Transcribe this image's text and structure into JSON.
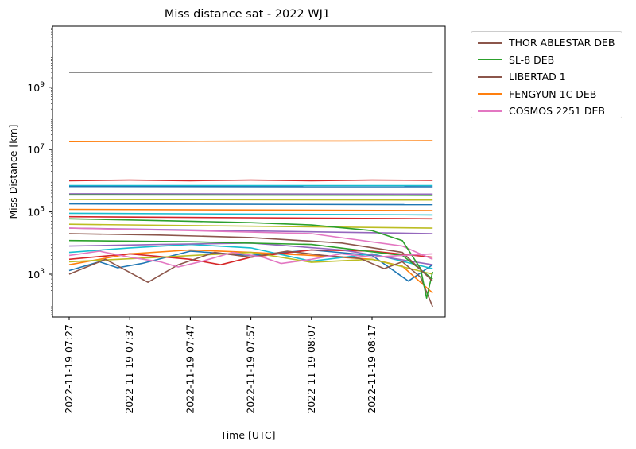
{
  "chart_data": {
    "type": "line",
    "title": "Miss distance sat - 2022 WJ1",
    "xlabel": "Time [UTC]",
    "ylabel": "Miss Distance [km]",
    "y_scale": "log",
    "ylim": [
      30,
      50000000000
    ],
    "x_ticks": [
      "2022-11-19 07:27",
      "2022-11-19 07:37",
      "2022-11-19 07:47",
      "2022-11-19 07:57",
      "2022-11-19 08:07",
      "2022-11-19 08:17"
    ],
    "y_tick_exponents": [
      3,
      5,
      7,
      9
    ],
    "y_tick_base": "10",
    "x_range_minutes_from_first_tick": [
      0,
      60
    ],
    "grid": false,
    "legend_position": "outside-upper-right",
    "series": [
      {
        "name": "THOR ABLESTAR DEB",
        "color": "#8c564b",
        "values": [
          [
            0,
            1000
          ],
          [
            6,
            3000
          ],
          [
            13,
            550
          ],
          [
            18,
            2000
          ],
          [
            24,
            5000
          ],
          [
            30,
            3500
          ],
          [
            36,
            5500
          ],
          [
            42,
            4000
          ],
          [
            48,
            3200
          ],
          [
            52,
            1500
          ],
          [
            55,
            2500
          ],
          [
            58,
            800
          ],
          [
            60,
            90
          ]
        ]
      },
      {
        "name": "SL-8 DEB",
        "color": "#2ca02c",
        "values": [
          [
            0,
            60000
          ],
          [
            10,
            55000
          ],
          [
            20,
            50000
          ],
          [
            30,
            45000
          ],
          [
            40,
            38000
          ],
          [
            50,
            25000
          ],
          [
            55,
            12000
          ],
          [
            58,
            1500
          ],
          [
            59,
            170
          ],
          [
            60,
            1200
          ]
        ]
      },
      {
        "name": "LIBERTAD 1",
        "color": "#8c564b",
        "values": [
          [
            0,
            20000
          ],
          [
            15,
            18000
          ],
          [
            30,
            15000
          ],
          [
            45,
            10000
          ],
          [
            55,
            5000
          ],
          [
            60,
            600
          ]
        ]
      },
      {
        "name": "FENGYUN 1C DEB",
        "color": "#ff7f0e",
        "values": [
          [
            0,
            18000000
          ],
          [
            15,
            18300000
          ],
          [
            30,
            18600000
          ],
          [
            45,
            18900000
          ],
          [
            60,
            19200000
          ]
        ]
      },
      {
        "name": "COSMOS 2251 DEB",
        "color": "#e377c2",
        "values": [
          [
            0,
            4000
          ],
          [
            5,
            5500
          ],
          [
            10,
            3500
          ],
          [
            15,
            2500
          ],
          [
            18,
            1700
          ],
          [
            22,
            2600
          ],
          [
            27,
            5000
          ],
          [
            32,
            3500
          ],
          [
            35,
            2200
          ],
          [
            40,
            3000
          ],
          [
            45,
            4500
          ],
          [
            50,
            3500
          ],
          [
            55,
            4000
          ],
          [
            60,
            4500
          ]
        ]
      }
    ],
    "unlabeled_series": [
      {
        "color": "#7f7f7f",
        "values": [
          [
            0,
            3000000000
          ],
          [
            30,
            3020000000
          ],
          [
            60,
            3050000000
          ]
        ]
      },
      {
        "color": "#d62728",
        "values": [
          [
            0,
            1000000
          ],
          [
            10,
            1050000
          ],
          [
            20,
            1000000
          ],
          [
            30,
            1050000
          ],
          [
            40,
            1000000
          ],
          [
            50,
            1050000
          ],
          [
            60,
            1030000
          ]
        ]
      },
      {
        "color": "#17becf",
        "values": [
          [
            0,
            700000
          ],
          [
            60,
            700000
          ]
        ]
      },
      {
        "color": "#1f77b4",
        "values": [
          [
            0,
            650000
          ],
          [
            60,
            640000
          ]
        ]
      },
      {
        "color": "#9467bd",
        "values": [
          [
            0,
            380000
          ],
          [
            60,
            370000
          ]
        ]
      },
      {
        "color": "#2ca02c",
        "values": [
          [
            0,
            350000
          ],
          [
            60,
            340000
          ]
        ]
      },
      {
        "color": "#bcbd22",
        "values": [
          [
            0,
            250000
          ],
          [
            60,
            240000
          ]
        ]
      },
      {
        "color": "#1f77b4",
        "values": [
          [
            0,
            180000
          ],
          [
            60,
            170000
          ]
        ]
      },
      {
        "color": "#ff7f0e",
        "values": [
          [
            0,
            120000
          ],
          [
            60,
            110000
          ]
        ]
      },
      {
        "color": "#17becf",
        "values": [
          [
            0,
            90000
          ],
          [
            60,
            80000
          ]
        ]
      },
      {
        "color": "#d62728",
        "values": [
          [
            0,
            70000
          ],
          [
            60,
            60000
          ]
        ]
      },
      {
        "color": "#bcbd22",
        "values": [
          [
            0,
            40000
          ],
          [
            60,
            30000
          ]
        ]
      },
      {
        "color": "#9467bd",
        "values": [
          [
            0,
            30000
          ],
          [
            60,
            20000
          ]
        ]
      },
      {
        "color": "#1f77b4",
        "values": [
          [
            0,
            1300
          ],
          [
            5,
            2500
          ],
          [
            8,
            1600
          ],
          [
            12,
            2200
          ],
          [
            20,
            5500
          ],
          [
            30,
            4000
          ],
          [
            40,
            6000
          ],
          [
            50,
            4000
          ],
          [
            56,
            600
          ],
          [
            60,
            2000
          ]
        ]
      },
      {
        "color": "#ff7f0e",
        "values": [
          [
            0,
            2000
          ],
          [
            10,
            4500
          ],
          [
            20,
            6000
          ],
          [
            30,
            5000
          ],
          [
            40,
            4000
          ],
          [
            50,
            3000
          ],
          [
            55,
            1800
          ],
          [
            60,
            250
          ]
        ]
      },
      {
        "color": "#d62728",
        "values": [
          [
            0,
            3000
          ],
          [
            10,
            4500
          ],
          [
            20,
            3000
          ],
          [
            25,
            2000
          ],
          [
            30,
            3500
          ],
          [
            40,
            6000
          ],
          [
            50,
            5500
          ],
          [
            60,
            3500
          ]
        ]
      },
      {
        "color": "#17becf",
        "values": [
          [
            0,
            5000
          ],
          [
            10,
            7000
          ],
          [
            20,
            9000
          ],
          [
            30,
            7000
          ],
          [
            40,
            2600
          ],
          [
            50,
            4500
          ],
          [
            60,
            1500
          ]
        ]
      },
      {
        "color": "#bcbd22",
        "values": [
          [
            0,
            2500
          ],
          [
            15,
            3500
          ],
          [
            30,
            5000
          ],
          [
            40,
            2400
          ],
          [
            50,
            3000
          ],
          [
            60,
            1000
          ]
        ]
      },
      {
        "color": "#9467bd",
        "values": [
          [
            0,
            8000
          ],
          [
            15,
            9000
          ],
          [
            30,
            10000
          ],
          [
            45,
            6000
          ],
          [
            60,
            2000
          ]
        ]
      },
      {
        "color": "#2ca02c",
        "values": [
          [
            0,
            12000
          ],
          [
            20,
            11000
          ],
          [
            40,
            9000
          ],
          [
            55,
            4000
          ],
          [
            60,
            700
          ]
        ]
      },
      {
        "color": "#e377c2",
        "values": [
          [
            0,
            30000
          ],
          [
            20,
            25000
          ],
          [
            40,
            20000
          ],
          [
            55,
            8000
          ],
          [
            60,
            3000
          ]
        ]
      }
    ]
  }
}
